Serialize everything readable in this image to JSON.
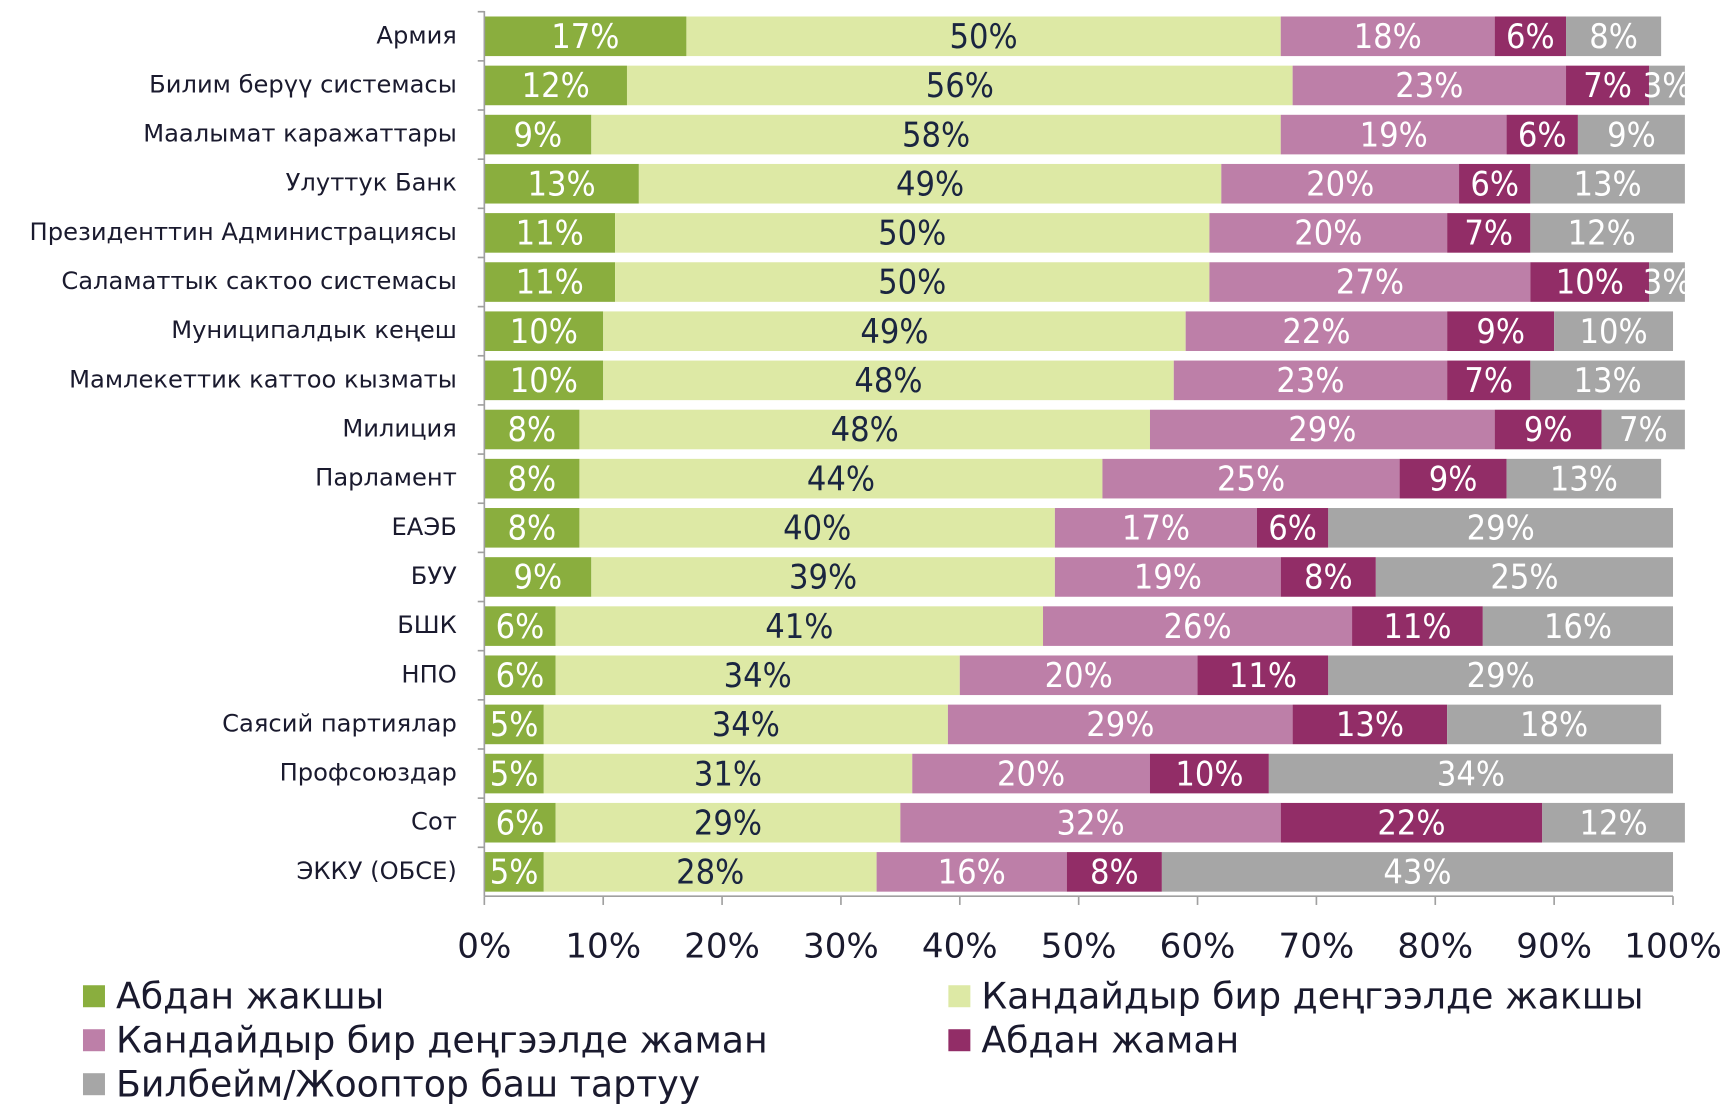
{
  "chart_data": {
    "type": "stacked_barh",
    "categories": [
      "Армия",
      "Билим берүү системасы",
      "Маалымат каражаттары",
      "Улуттук Банк",
      "Президенттин Администрациясы",
      "Саламаттык сактоо системасы",
      "Муниципалдык кеңеш",
      "Мамлекеттик каттоо кызматы",
      "Милиция",
      "Парламент",
      "ЕАЭБ",
      "БУУ",
      "БШК",
      "НПО",
      "Саясий партиялар",
      "Профсоюздар",
      "Сот",
      "ЭККУ (ОБСЕ)"
    ],
    "series": [
      {
        "name": "Абдан жакшы",
        "color": "#8aae3e",
        "values": [
          17,
          12,
          9,
          13,
          11,
          11,
          10,
          10,
          8,
          8,
          8,
          9,
          6,
          6,
          5,
          5,
          6,
          5
        ],
        "value_labels": [
          "17%",
          "12%",
          "9%",
          "13%",
          "11%",
          "11%",
          "10%",
          "10%",
          "8%",
          "8%",
          "8%",
          "9%",
          "6%",
          "6%",
          "5%",
          "5%",
          "6%",
          "5%"
        ]
      },
      {
        "name": "Кандайдыр бир деңгээлде жакшы",
        "color": "#dde9a5",
        "values": [
          50,
          56,
          58,
          49,
          50,
          50,
          49,
          48,
          48,
          44,
          40,
          39,
          41,
          34,
          34,
          31,
          29,
          28
        ],
        "value_labels": [
          "50%",
          "56%",
          "58%",
          "49%",
          "50%",
          "50%",
          "49%",
          "48%",
          "48%",
          "44%",
          "40%",
          "39%",
          "41%",
          "34%",
          "34%",
          "31%",
          "29%",
          "28%"
        ]
      },
      {
        "name": "Кандайдыр бир деңгээлде жаман",
        "color": "#bd7fa8",
        "values": [
          18,
          23,
          19,
          20,
          20,
          27,
          22,
          23,
          29,
          25,
          17,
          19,
          26,
          20,
          29,
          20,
          32,
          16
        ],
        "value_labels": [
          "18%",
          "23%",
          "19%",
          "20%",
          "20%",
          "27%",
          "22%",
          "23%",
          "29%",
          "25%",
          "17%",
          "19%",
          "26%",
          "20%",
          "29%",
          "20%",
          "32%",
          "16%"
        ]
      },
      {
        "name": "Абдан жаман",
        "color": "#922d67",
        "values": [
          6,
          7,
          6,
          6,
          7,
          10,
          9,
          7,
          9,
          9,
          6,
          8,
          11,
          11,
          13,
          10,
          22,
          8
        ],
        "value_labels": [
          "6%",
          "7%",
          "6%",
          "6%",
          "7%",
          "10%",
          "9%",
          "7%",
          "9%",
          "9%",
          "6%",
          "8%",
          "11%",
          "11%",
          "13%",
          "10%",
          "22%",
          "8%"
        ]
      },
      {
        "name": "Билбейм/Жооптор баш тартуу",
        "color": "#a6a6a6",
        "values": [
          8,
          3,
          9,
          13,
          12,
          3,
          10,
          13,
          7,
          13,
          29,
          25,
          16,
          29,
          18,
          34,
          12,
          43
        ],
        "value_labels": [
          "8%",
          "3%",
          "9%",
          "13%",
          "12%",
          "3%",
          "10%",
          "13%",
          "7%",
          "13%",
          "29%",
          "25%",
          "16%",
          "29%",
          "18%",
          "34%",
          "12%",
          "43%"
        ]
      }
    ],
    "xlim": [
      0,
      100
    ],
    "xticks": [
      {
        "value": 0,
        "label": "0%"
      },
      {
        "value": 10,
        "label": "10%"
      },
      {
        "value": 20,
        "label": "20%"
      },
      {
        "value": 30,
        "label": "30%"
      },
      {
        "value": 40,
        "label": "40%"
      },
      {
        "value": 50,
        "label": "50%"
      },
      {
        "value": 60,
        "label": "60%"
      },
      {
        "value": 70,
        "label": "70%"
      },
      {
        "value": 80,
        "label": "80%"
      },
      {
        "value": 90,
        "label": "90%"
      },
      {
        "value": 100,
        "label": "100%"
      }
    ],
    "legend": "bottom"
  }
}
